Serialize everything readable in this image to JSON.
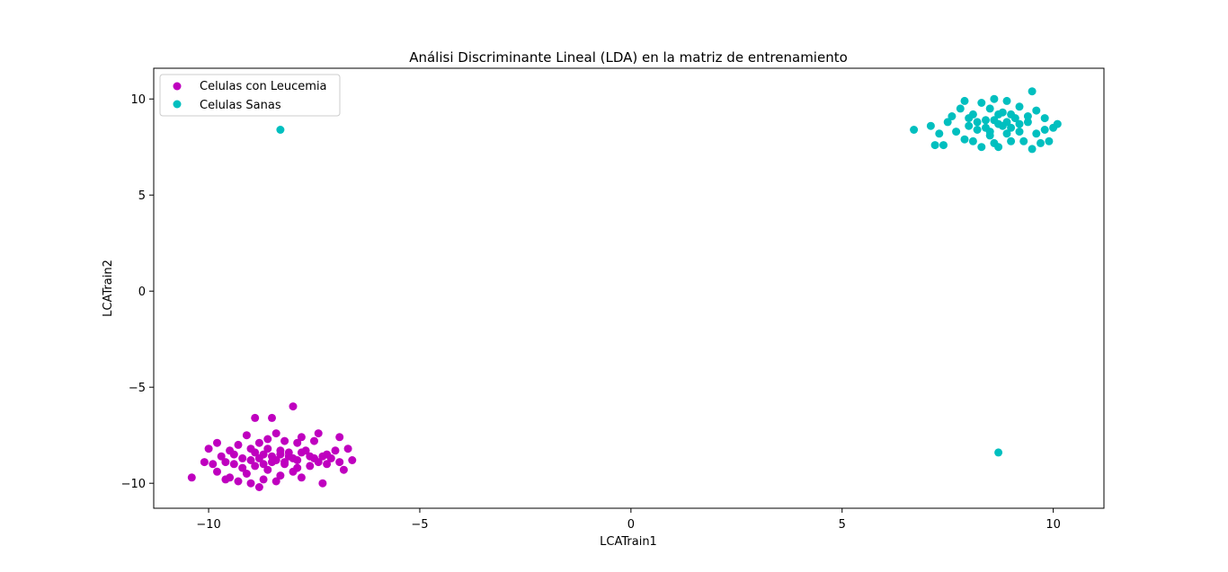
{
  "chart_data": {
    "type": "scatter",
    "title": "Análisi Discriminante Lineal (LDA) en la matriz de entrenamiento",
    "xlabel": "LCATrain1",
    "ylabel": "LCATrain2",
    "xlim": [
      -11.3,
      11.2
    ],
    "ylim": [
      -11.3,
      11.6
    ],
    "xticks": [
      -10,
      -5,
      0,
      5,
      10
    ],
    "xtick_labels": [
      "−10",
      "−5",
      "0",
      "5",
      "10"
    ],
    "yticks": [
      -10,
      -5,
      0,
      5,
      10
    ],
    "ytick_labels": [
      "−10",
      "−5",
      "0",
      "5",
      "10"
    ],
    "grid": false,
    "legend_position": "upper-left",
    "series": [
      {
        "name": "Celulas con Leucemia",
        "color": "#bf00bf",
        "points": [
          [
            -10.4,
            -9.7
          ],
          [
            -10.1,
            -8.9
          ],
          [
            -10.0,
            -8.2
          ],
          [
            -9.9,
            -9.0
          ],
          [
            -9.8,
            -7.9
          ],
          [
            -9.8,
            -9.4
          ],
          [
            -9.7,
            -8.6
          ],
          [
            -9.6,
            -9.8
          ],
          [
            -9.5,
            -8.3
          ],
          [
            -9.5,
            -9.7
          ],
          [
            -9.4,
            -9.0
          ],
          [
            -9.3,
            -8.0
          ],
          [
            -9.3,
            -9.9
          ],
          [
            -9.2,
            -8.7
          ],
          [
            -9.1,
            -7.5
          ],
          [
            -9.1,
            -9.5
          ],
          [
            -9.0,
            -8.2
          ],
          [
            -9.0,
            -10.0
          ],
          [
            -8.9,
            -6.6
          ],
          [
            -8.9,
            -9.1
          ],
          [
            -8.8,
            -7.9
          ],
          [
            -8.8,
            -10.2
          ],
          [
            -8.7,
            -8.5
          ],
          [
            -8.7,
            -9.8
          ],
          [
            -8.6,
            -7.7
          ],
          [
            -8.6,
            -9.3
          ],
          [
            -8.5,
            -6.6
          ],
          [
            -8.5,
            -8.9
          ],
          [
            -8.4,
            -7.4
          ],
          [
            -8.4,
            -9.9
          ],
          [
            -8.3,
            -8.3
          ],
          [
            -8.3,
            -9.6
          ],
          [
            -8.2,
            -7.8
          ],
          [
            -8.2,
            -9.0
          ],
          [
            -8.1,
            -8.6
          ],
          [
            -8.0,
            -6.0
          ],
          [
            -8.0,
            -9.4
          ],
          [
            -7.9,
            -7.9
          ],
          [
            -7.9,
            -8.8
          ],
          [
            -7.8,
            -7.6
          ],
          [
            -7.8,
            -9.7
          ],
          [
            -7.7,
            -8.3
          ],
          [
            -7.6,
            -9.1
          ],
          [
            -7.5,
            -7.8
          ],
          [
            -7.5,
            -8.7
          ],
          [
            -7.4,
            -7.4
          ],
          [
            -7.3,
            -10.0
          ],
          [
            -7.3,
            -8.6
          ],
          [
            -7.2,
            -9.0
          ],
          [
            -7.1,
            -8.7
          ],
          [
            -7.0,
            -8.3
          ],
          [
            -6.9,
            -7.6
          ],
          [
            -6.9,
            -8.9
          ],
          [
            -6.8,
            -9.3
          ],
          [
            -6.7,
            -8.2
          ],
          [
            -6.6,
            -8.8
          ],
          [
            -9.6,
            -8.9
          ],
          [
            -9.4,
            -8.5
          ],
          [
            -9.2,
            -9.2
          ],
          [
            -9.0,
            -8.8
          ],
          [
            -8.9,
            -8.4
          ],
          [
            -8.8,
            -8.7
          ],
          [
            -8.7,
            -9.0
          ],
          [
            -8.6,
            -8.2
          ],
          [
            -8.5,
            -8.6
          ],
          [
            -8.4,
            -8.8
          ],
          [
            -8.3,
            -8.5
          ],
          [
            -8.2,
            -8.9
          ],
          [
            -8.1,
            -8.4
          ],
          [
            -8.0,
            -8.7
          ],
          [
            -7.9,
            -9.2
          ],
          [
            -7.8,
            -8.4
          ],
          [
            -7.6,
            -8.6
          ],
          [
            -7.4,
            -8.9
          ],
          [
            -7.2,
            -8.5
          ]
        ]
      },
      {
        "name": "Celulas Sanas",
        "color": "#00bfbf",
        "points": [
          [
            -8.3,
            8.4
          ],
          [
            8.7,
            -8.4
          ],
          [
            6.7,
            8.4
          ],
          [
            7.1,
            8.6
          ],
          [
            7.2,
            7.6
          ],
          [
            7.3,
            8.2
          ],
          [
            7.4,
            7.6
          ],
          [
            7.5,
            8.8
          ],
          [
            7.6,
            9.1
          ],
          [
            7.7,
            8.3
          ],
          [
            7.8,
            9.5
          ],
          [
            7.9,
            7.9
          ],
          [
            7.9,
            9.9
          ],
          [
            8.0,
            8.6
          ],
          [
            8.1,
            7.8
          ],
          [
            8.1,
            9.2
          ],
          [
            8.2,
            8.4
          ],
          [
            8.3,
            9.8
          ],
          [
            8.3,
            7.5
          ],
          [
            8.4,
            8.9
          ],
          [
            8.5,
            8.1
          ],
          [
            8.5,
            9.5
          ],
          [
            8.6,
            7.7
          ],
          [
            8.6,
            10.0
          ],
          [
            8.7,
            8.7
          ],
          [
            8.7,
            7.5
          ],
          [
            8.8,
            9.3
          ],
          [
            8.9,
            8.2
          ],
          [
            8.9,
            9.9
          ],
          [
            9.0,
            8.5
          ],
          [
            9.0,
            7.8
          ],
          [
            9.1,
            9.0
          ],
          [
            9.2,
            8.3
          ],
          [
            9.2,
            9.6
          ],
          [
            9.3,
            7.8
          ],
          [
            9.4,
            8.8
          ],
          [
            9.5,
            7.4
          ],
          [
            9.5,
            10.4
          ],
          [
            9.6,
            8.2
          ],
          [
            9.6,
            9.4
          ],
          [
            9.7,
            7.7
          ],
          [
            9.8,
            9.0
          ],
          [
            9.8,
            8.4
          ],
          [
            9.9,
            7.8
          ],
          [
            10.0,
            8.5
          ],
          [
            10.1,
            8.7
          ],
          [
            8.0,
            9.0
          ],
          [
            8.2,
            8.8
          ],
          [
            8.4,
            8.5
          ],
          [
            8.6,
            8.9
          ],
          [
            8.8,
            8.6
          ],
          [
            9.0,
            9.2
          ],
          [
            9.2,
            8.7
          ],
          [
            9.4,
            9.1
          ],
          [
            8.5,
            8.3
          ],
          [
            8.7,
            9.2
          ],
          [
            8.9,
            8.8
          ]
        ]
      }
    ]
  }
}
